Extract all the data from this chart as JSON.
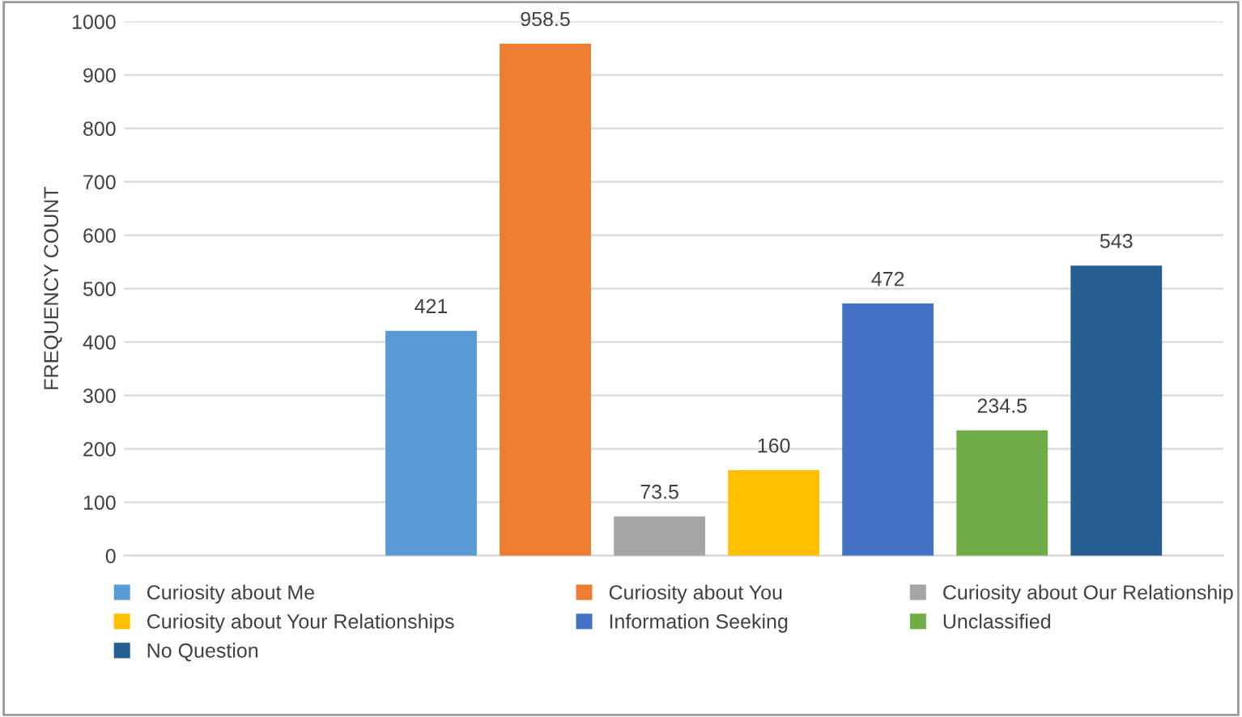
{
  "chart_data": {
    "type": "bar",
    "ylabel": "FREQUENCY COUNT",
    "categories": [
      null
    ],
    "series": [
      {
        "name": "Curiosity about Me",
        "color": "#5b9bd5",
        "values": [
          421
        ]
      },
      {
        "name": "Curiosity about You",
        "color": "#ed7d31",
        "values": [
          958.5
        ]
      },
      {
        "name": "Curiosity about Our Relationship",
        "color": "#a5a5a5",
        "values": [
          73.5
        ]
      },
      {
        "name": "Curiosity about Your Relationships",
        "color": "#ffc000",
        "values": [
          160
        ]
      },
      {
        "name": "Information Seeking",
        "color": "#4472c4",
        "values": [
          472
        ]
      },
      {
        "name": "Unclassified",
        "color": "#70ad47",
        "values": [
          234.5
        ]
      },
      {
        "name": "No Question",
        "color": "#255e91",
        "values": [
          543
        ]
      }
    ],
    "ylim": [
      0,
      1000
    ],
    "yticks": [
      0,
      100,
      200,
      300,
      400,
      500,
      600,
      700,
      800,
      900,
      1000
    ],
    "grid": "y",
    "legend": "bottom",
    "data_labels": true
  }
}
